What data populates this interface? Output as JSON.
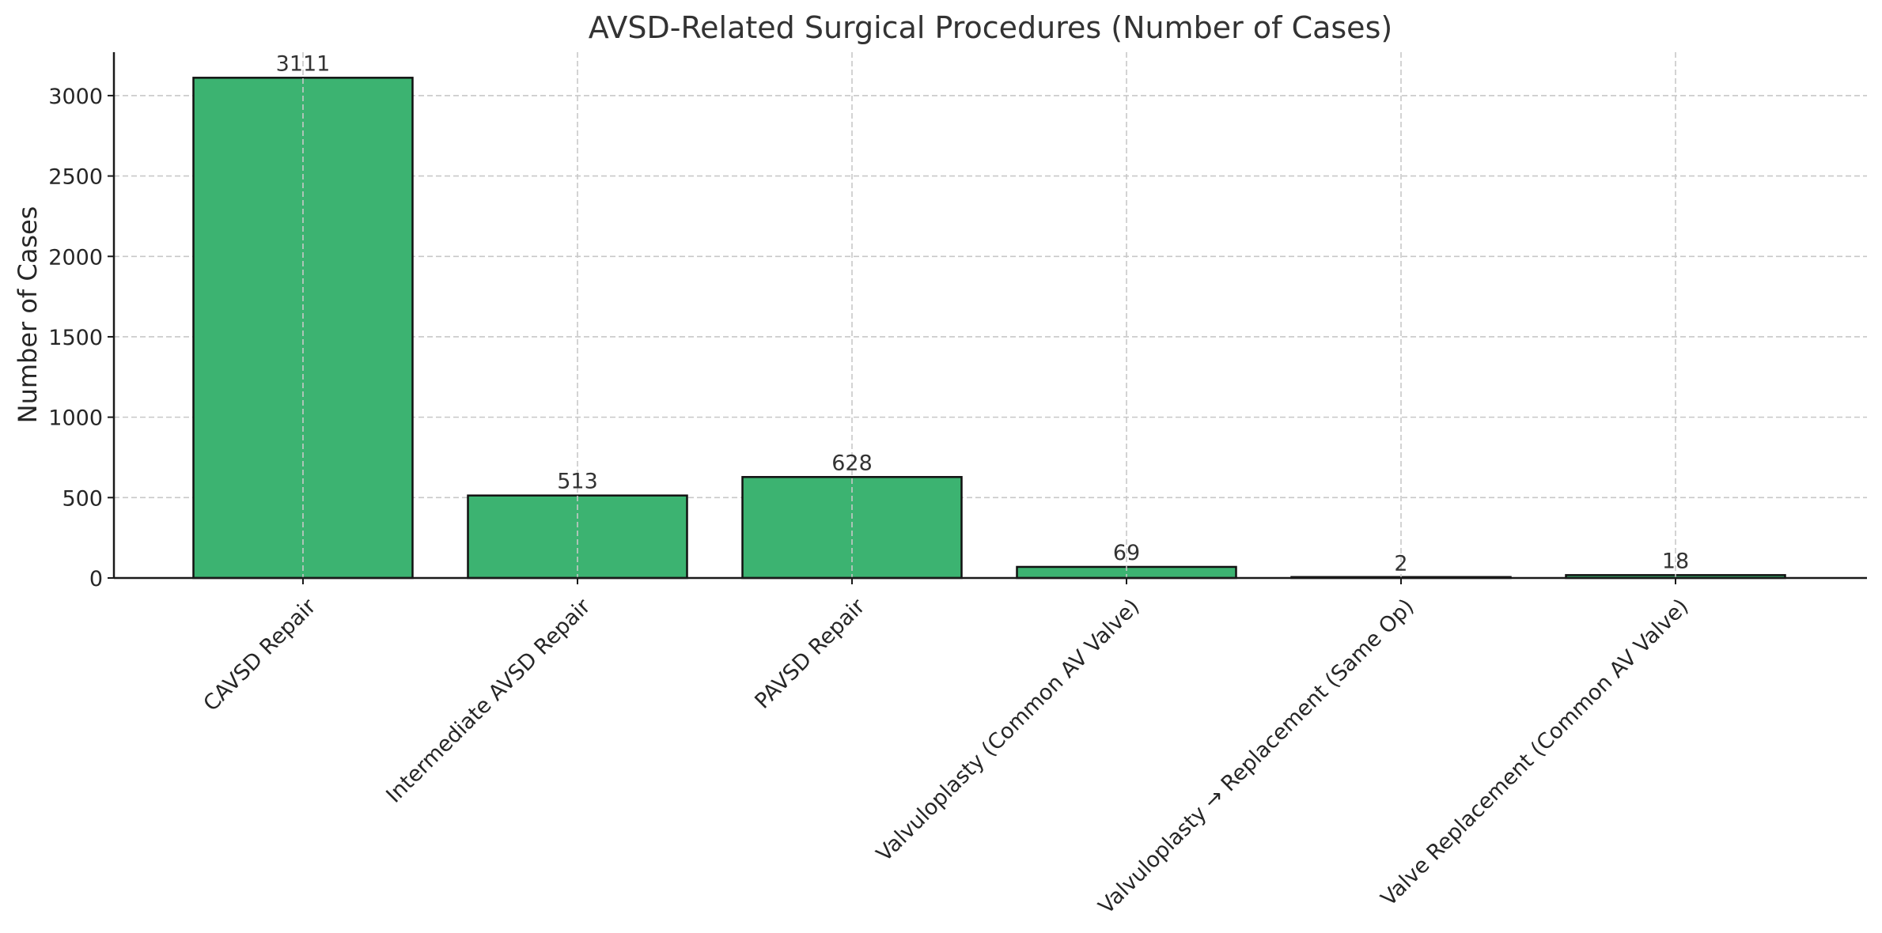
{
  "chart_data": {
    "type": "bar",
    "title": "AVSD-Related Surgical Procedures (Number of Cases)",
    "xlabel": "",
    "ylabel": "Number of Cases",
    "categories": [
      "CAVSD Repair",
      "Intermediate AVSD Repair",
      "PAVSD Repair",
      "Valvuloplasty (Common AV Valve)",
      "Valvuloplasty → Replacement (Same Op)",
      "Valve Replacement (Common AV Valve)"
    ],
    "values": [
      3111,
      513,
      628,
      69,
      2,
      18
    ],
    "data_labels": [
      "3111",
      "513",
      "628",
      "69",
      "2",
      "18"
    ],
    "ylim": [
      0,
      3270
    ],
    "yticks": [
      0,
      500,
      1000,
      1500,
      2000,
      2500,
      3000
    ],
    "ytick_labels": [
      "0",
      "500",
      "1000",
      "1500",
      "2000",
      "2500",
      "3000"
    ],
    "grid": true,
    "colors": {
      "bar": "#3cb371",
      "bar_edge": "#111111",
      "grid": "#c8c8c8"
    }
  }
}
